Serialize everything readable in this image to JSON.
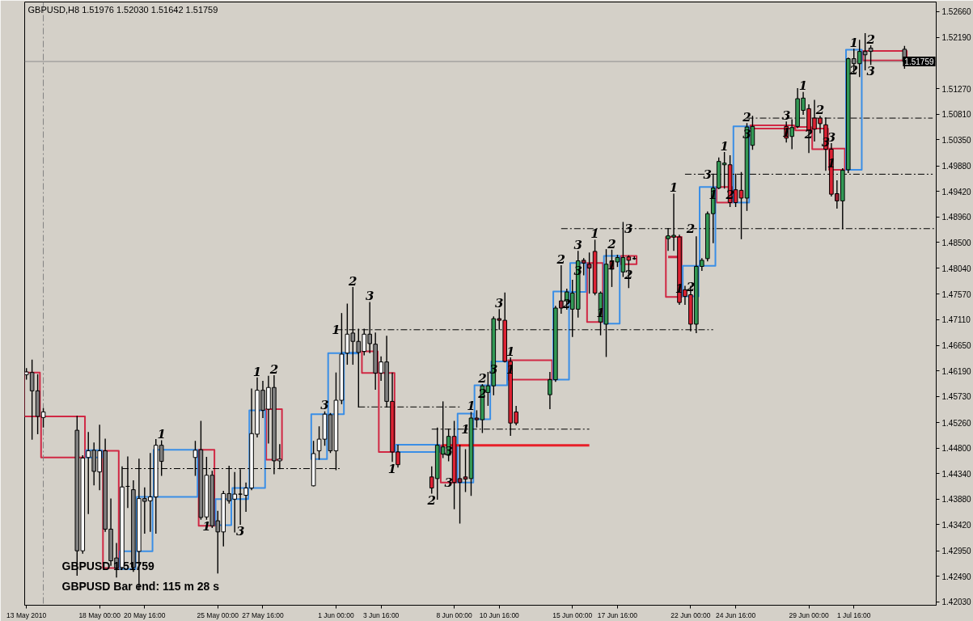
{
  "chart_data": {
    "type": "candlestick",
    "title": "GBPUSD,H8 1.51976 1.52030 1.51642 1.51759",
    "x": [
      "2010-05-13T16:00",
      "2010-05-14T00:00",
      "2010-05-14T08:00",
      "2010-05-14T16:00",
      "2010-05-16T16:00",
      "2010-05-17T00:00",
      "2010-05-17T08:00",
      "2010-05-17T16:00",
      "2010-05-18T00:00",
      "2010-05-18T08:00",
      "2010-05-18T16:00",
      "2010-05-19T00:00",
      "2010-05-19T08:00",
      "2010-05-19T16:00",
      "2010-05-20T00:00",
      "2010-05-20T08:00",
      "2010-05-20T16:00",
      "2010-05-21T00:00",
      "2010-05-21T08:00",
      "2010-05-21T16:00",
      "2010-05-23T16:00",
      "2010-05-24T00:00",
      "2010-05-24T08:00",
      "2010-05-24T16:00",
      "2010-05-25T00:00",
      "2010-05-25T08:00",
      "2010-05-25T16:00",
      "2010-05-26T00:00",
      "2010-05-26T08:00",
      "2010-05-26T16:00",
      "2010-05-27T00:00",
      "2010-05-27T08:00",
      "2010-05-27T16:00",
      "2010-05-28T00:00",
      "2010-05-28T08:00",
      "2010-05-28T16:00",
      "2010-05-30T16:00",
      "2010-05-31T00:00",
      "2010-05-31T08:00",
      "2010-05-31T16:00",
      "2010-06-01T00:00",
      "2010-06-01T08:00",
      "2010-06-01T16:00",
      "2010-06-02T00:00",
      "2010-06-02T08:00",
      "2010-06-02T16:00",
      "2010-06-03T00:00",
      "2010-06-03T08:00",
      "2010-06-03T16:00",
      "2010-06-04T00:00",
      "2010-06-04T08:00",
      "2010-06-04T16:00",
      "2010-06-06T16:00",
      "2010-06-07T00:00",
      "2010-06-07T08:00",
      "2010-06-07T16:00",
      "2010-06-08T00:00",
      "2010-06-08T08:00",
      "2010-06-08T16:00",
      "2010-06-09T00:00",
      "2010-06-09T08:00",
      "2010-06-09T16:00",
      "2010-06-10T00:00",
      "2010-06-10T08:00",
      "2010-06-10T16:00",
      "2010-06-11T00:00",
      "2010-06-11T08:00",
      "2010-06-11T16:00",
      "2010-06-13T16:00",
      "2010-06-14T00:00",
      "2010-06-14T08:00",
      "2010-06-14T16:00",
      "2010-06-15T00:00",
      "2010-06-15T08:00",
      "2010-06-15T16:00",
      "2010-06-16T00:00",
      "2010-06-16T08:00",
      "2010-06-16T16:00",
      "2010-06-17T00:00",
      "2010-06-17T08:00",
      "2010-06-17T16:00",
      "2010-06-18T00:00",
      "2010-06-18T08:00",
      "2010-06-18T16:00",
      "2010-06-20T16:00",
      "2010-06-21T00:00",
      "2010-06-21T08:00",
      "2010-06-21T16:00",
      "2010-06-22T00:00",
      "2010-06-22T08:00",
      "2010-06-22T16:00",
      "2010-06-23T00:00",
      "2010-06-23T08:00",
      "2010-06-23T16:00",
      "2010-06-24T00:00",
      "2010-06-24T08:00",
      "2010-06-24T16:00",
      "2010-06-25T00:00",
      "2010-06-25T08:00",
      "2010-06-25T16:00",
      "2010-06-27T16:00",
      "2010-06-28T00:00",
      "2010-06-28T08:00",
      "2010-06-28T16:00",
      "2010-06-29T00:00",
      "2010-06-29T08:00",
      "2010-06-29T16:00",
      "2010-06-30T00:00",
      "2010-06-30T08:00",
      "2010-06-30T16:00",
      "2010-07-01T00:00",
      "2010-07-01T08:00",
      "2010-07-01T16:00",
      "2010-07-02T00:00",
      "2010-07-02T08:00",
      "2010-07-02T16:00",
      "2010-07-04T16:00"
    ],
    "ohlc": [
      [
        1.4612,
        1.4623,
        1.4604,
        1.4617
      ],
      [
        1.4616,
        1.4638,
        1.4496,
        1.4583
      ],
      [
        1.4583,
        1.4612,
        1.4506,
        1.4537
      ],
      [
        1.4535,
        1.4551,
        1.4518,
        1.4545
      ],
      [
        1.4512,
        1.4537,
        1.4251,
        1.4295
      ],
      [
        1.4295,
        1.4466,
        1.4291,
        1.4462
      ],
      [
        1.4463,
        1.4508,
        1.4362,
        1.4475
      ],
      [
        1.4476,
        1.4489,
        1.4414,
        1.4438
      ],
      [
        1.4437,
        1.4521,
        1.4405,
        1.4475
      ],
      [
        1.4475,
        1.4496,
        1.433,
        1.4334
      ],
      [
        1.4334,
        1.4388,
        1.4269,
        1.4277
      ],
      [
        1.4282,
        1.4308,
        1.4248,
        1.4264
      ],
      [
        1.4265,
        1.4446,
        1.4262,
        1.441
      ],
      [
        1.4411,
        1.4464,
        1.4373,
        1.4411
      ],
      [
        1.4405,
        1.4421,
        1.4258,
        1.4265
      ],
      [
        1.4294,
        1.446,
        1.4226,
        1.4389
      ],
      [
        1.4389,
        1.4408,
        1.4327,
        1.4384
      ],
      [
        1.4385,
        1.447,
        1.433,
        1.4392
      ],
      [
        1.4392,
        1.4495,
        1.4327,
        1.4485
      ],
      [
        1.4485,
        1.4493,
        1.4431,
        1.4456
      ],
      [
        1.4463,
        1.4492,
        1.4431,
        1.4476
      ],
      [
        1.4477,
        1.4528,
        1.4352,
        1.4355
      ],
      [
        1.4356,
        1.4463,
        1.4352,
        1.4431
      ],
      [
        1.4431,
        1.4438,
        1.4337,
        1.434
      ],
      [
        1.4349,
        1.4366,
        1.4255,
        1.4329
      ],
      [
        1.4329,
        1.4402,
        1.4304,
        1.4398
      ],
      [
        1.4398,
        1.4447,
        1.4381,
        1.4385
      ],
      [
        1.4388,
        1.4436,
        1.4329,
        1.4397
      ],
      [
        1.4397,
        1.4441,
        1.4343,
        1.4397
      ],
      [
        1.4395,
        1.4417,
        1.4366,
        1.4408
      ],
      [
        1.4408,
        1.4586,
        1.4405,
        1.4506
      ],
      [
        1.4505,
        1.4606,
        1.45,
        1.4584
      ],
      [
        1.4584,
        1.46,
        1.4535,
        1.4548
      ],
      [
        1.455,
        1.4609,
        1.4489,
        1.4589
      ],
      [
        1.4589,
        1.461,
        1.4434,
        1.4457
      ],
      [
        1.4457,
        1.4486,
        1.4443,
        1.446
      ],
      [
        1.4412,
        1.4492,
        1.4412,
        1.447
      ],
      [
        1.4475,
        1.4518,
        1.446,
        1.4496
      ],
      [
        1.4496,
        1.4545,
        1.4485,
        1.4541
      ],
      [
        1.454,
        1.4542,
        1.4472,
        1.4475
      ],
      [
        1.4475,
        1.4615,
        1.4441,
        1.4566
      ],
      [
        1.4566,
        1.4722,
        1.456,
        1.4649
      ],
      [
        1.4651,
        1.4739,
        1.4631,
        1.4685
      ],
      [
        1.4687,
        1.4769,
        1.4631,
        1.4672
      ],
      [
        1.4672,
        1.4694,
        1.4554,
        1.4652
      ],
      [
        1.4654,
        1.4694,
        1.4648,
        1.4685
      ],
      [
        1.4685,
        1.4742,
        1.4652,
        1.4668
      ],
      [
        1.4667,
        1.4687,
        1.4586,
        1.4615
      ],
      [
        1.4615,
        1.4644,
        1.4602,
        1.4635
      ],
      [
        1.4635,
        1.4681,
        1.4554,
        1.4564
      ],
      [
        1.4564,
        1.4615,
        1.4456,
        1.4473
      ],
      [
        1.4473,
        1.4485,
        1.4446,
        1.445
      ],
      [
        1.4428,
        1.4446,
        1.4399,
        1.4408
      ],
      [
        1.4425,
        1.4516,
        1.4388,
        1.4485
      ],
      [
        1.4469,
        1.4563,
        1.4463,
        1.4482
      ],
      [
        1.4467,
        1.4514,
        1.4457,
        1.4501
      ],
      [
        1.4501,
        1.4528,
        1.4371,
        1.4418
      ],
      [
        1.4425,
        1.4485,
        1.4345,
        1.4418
      ],
      [
        1.4428,
        1.4477,
        1.4402,
        1.4424
      ],
      [
        1.4425,
        1.4544,
        1.4395,
        1.4534
      ],
      [
        1.4534,
        1.4547,
        1.4518,
        1.4531
      ],
      [
        1.4531,
        1.4594,
        1.4508,
        1.4592
      ],
      [
        1.458,
        1.4616,
        1.4557,
        1.4592
      ],
      [
        1.4592,
        1.4716,
        1.4576,
        1.4713
      ],
      [
        1.4713,
        1.4729,
        1.4694,
        1.471
      ],
      [
        1.471,
        1.4759,
        1.4635,
        1.4636
      ],
      [
        1.4636,
        1.4642,
        1.4503,
        1.4525
      ],
      [
        1.4545,
        1.4555,
        1.4522,
        1.4525
      ],
      [
        1.4576,
        1.4616,
        1.4551,
        1.4603
      ],
      [
        1.4603,
        1.4735,
        1.46,
        1.4732
      ],
      [
        1.4745,
        1.4808,
        1.4723,
        1.4732
      ],
      [
        1.4745,
        1.4766,
        1.473,
        1.4761
      ],
      [
        1.473,
        1.4782,
        1.4681,
        1.4759
      ],
      [
        1.473,
        1.4834,
        1.4716,
        1.4817
      ],
      [
        1.4818,
        1.4821,
        1.4792,
        1.4813
      ],
      [
        1.4811,
        1.4831,
        1.4759,
        1.4804
      ],
      [
        1.4834,
        1.4854,
        1.4756,
        1.4759
      ],
      [
        1.4707,
        1.4761,
        1.4684,
        1.4759
      ],
      [
        1.4703,
        1.4837,
        1.4645,
        1.4811
      ],
      [
        1.4817,
        1.4836,
        1.4771,
        1.4802
      ],
      [
        1.4815,
        1.4827,
        1.4807,
        1.4823
      ],
      [
        1.4797,
        1.4886,
        1.4789,
        1.4823
      ],
      [
        1.4824,
        1.4826,
        1.4769,
        1.4818
      ],
      [
        1.4821,
        1.4824,
        1.482,
        1.4821
      ],
      [
        1.4857,
        1.4875,
        1.4836,
        1.4862
      ],
      [
        1.486,
        1.4937,
        1.4836,
        1.4863
      ],
      [
        1.486,
        1.4863,
        1.4739,
        1.4742
      ],
      [
        1.4765,
        1.4771,
        1.4739,
        1.4753
      ],
      [
        1.4756,
        1.4771,
        1.4691,
        1.4703
      ],
      [
        1.4703,
        1.486,
        1.4688,
        1.4807
      ],
      [
        1.4807,
        1.4821,
        1.48,
        1.4818
      ],
      [
        1.4821,
        1.4905,
        1.4817,
        1.4902
      ],
      [
        1.4902,
        1.4973,
        1.485,
        1.4948
      ],
      [
        1.4948,
        1.5002,
        1.4947,
        1.4996
      ],
      [
        1.499,
        1.5012,
        1.4948,
        1.4993
      ],
      [
        1.499,
        1.5006,
        1.4915,
        1.4922
      ],
      [
        1.4945,
        1.4973,
        1.4915,
        1.4922
      ],
      [
        1.4944,
        1.4976,
        1.4857,
        1.493
      ],
      [
        1.493,
        1.5064,
        1.4908,
        1.5058
      ],
      [
        1.5025,
        1.5077,
        1.5018,
        1.5059
      ],
      [
        1.5059,
        1.5067,
        1.5031,
        1.5038
      ],
      [
        1.5041,
        1.5071,
        1.5019,
        1.5057
      ],
      [
        1.5059,
        1.5127,
        1.5057,
        1.5109
      ],
      [
        1.5088,
        1.512,
        1.5081,
        1.511
      ],
      [
        1.5091,
        1.5098,
        1.5012,
        1.5052
      ],
      [
        1.5074,
        1.5106,
        1.5033,
        1.5054
      ],
      [
        1.5074,
        1.5077,
        1.5048,
        1.5064
      ],
      [
        1.5062,
        1.5074,
        1.498,
        1.5018
      ],
      [
        1.5018,
        1.5028,
        1.4934,
        1.4937
      ],
      [
        1.4938,
        1.4961,
        1.4912,
        1.4925
      ],
      [
        1.4925,
        1.4983,
        1.4875,
        1.498
      ],
      [
        1.4981,
        1.5182,
        1.4976,
        1.5181
      ],
      [
        1.5181,
        1.5198,
        1.5156,
        1.5172
      ],
      [
        1.5172,
        1.5214,
        1.5149,
        1.5194
      ],
      [
        1.5194,
        1.5226,
        1.5161,
        1.5188
      ],
      [
        1.52,
        1.5204,
        1.5171,
        1.5194
      ],
      [
        1.5198,
        1.5203,
        1.5164,
        1.5176
      ]
    ],
    "colors": [
      "#ffffff",
      "#808080",
      "#808080",
      "#ffffff",
      "#808080",
      "#ffffff",
      "#ffffff",
      "#808080",
      "#ffffff",
      "#808080",
      "#808080",
      "#808080",
      "#ffffff",
      "#000000",
      "#808080",
      "#ffffff",
      "#808080",
      "#ffffff",
      "#ffffff",
      "#808080",
      "#ffffff",
      "#808080",
      "#ffffff",
      "#808080",
      "#808080",
      "#ffffff",
      "#808080",
      "#ffffff",
      "#000000",
      "#ffffff",
      "#ffffff",
      "#ffffff",
      "#808080",
      "#ffffff",
      "#808080",
      "#ffffff",
      "#ffffff",
      "#ffffff",
      "#ffffff",
      "#808080",
      "#ffffff",
      "#ffffff",
      "#ffffff",
      "#808080",
      "#808080",
      "#ffffff",
      "#808080",
      "#808080",
      "#ffffff",
      "#808080",
      "#dd2233",
      "#dd2233",
      "#dd2233",
      "#339955",
      "#339955",
      "#339955",
      "#dd2233",
      "#992233",
      "#992233",
      "#339955",
      "#992233",
      "#339955",
      "#339955",
      "#339955",
      "#992233",
      "#dd2233",
      "#dd2233",
      "#dd2233",
      "#339955",
      "#339955",
      "#992233",
      "#339955",
      "#339955",
      "#339955",
      "#992233",
      "#992233",
      "#dd2233",
      "#339955",
      "#339955",
      "#dd2233",
      "#339955",
      "#339955",
      "#dd2233",
      "#000000",
      "#339955",
      "#339955",
      "#dd2233",
      "#dd2233",
      "#dd2233",
      "#339955",
      "#339955",
      "#339955",
      "#339955",
      "#339955",
      "#339955",
      "#dd2233",
      "#dd2233",
      "#dd2233",
      "#339955",
      "#339955",
      "#dd2233",
      "#339955",
      "#339955",
      "#339955",
      "#dd2233",
      "#dd2233",
      "#dd2233",
      "#dd2233",
      "#dd2233",
      "#992233",
      "#339955",
      "#339955",
      "#808080",
      "#339955",
      "#808080",
      "#808080",
      "#808080"
    ],
    "series": [
      {
        "type": "bar",
        "color": "#d02844",
        "x": [
          "2010-05-14T00:00",
          "2010-05-15T20:00",
          "2010-05-18T16:00",
          "2010-05-24T08:00",
          "2010-05-28T08:00",
          "2010-06-03T00:00",
          "2010-06-04T00:00",
          "2010-06-07T16:00",
          "2010-06-12T12:00",
          "2010-06-16T08:00",
          "2010-06-18T08:00",
          "2010-06-21T00:00",
          "2010-06-24T00:00",
          "2010-06-26T20:00",
          "2010-06-28T16:00",
          "2010-06-29T16:00",
          "2010-06-30T16:00",
          "2010-07-03T12:00"
        ],
        "base": [
          1.4537,
          1.4463,
          1.4264,
          1.434,
          1.4459,
          1.4615,
          1.4473,
          1.4418,
          1.4603,
          1.4707,
          1.4811,
          1.4752,
          1.4922,
          1.5055,
          1.5052,
          1.5018,
          1.4981,
          1.5178
        ],
        "values": [
          0.0079,
          0.0074,
          0.0211,
          0.0137,
          0.0091,
          0.0039,
          0.0142,
          0.0067,
          0.0035,
          0.0106,
          0.0015,
          0.0108,
          0.0028,
          0.0006,
          0.0006,
          0.0037,
          0.0038,
          0.0017
        ]
      },
      {
        "type": "bar",
        "color": "#3a8ee6",
        "x": [
          "2010-05-17T16:00",
          "2010-05-19T16:00",
          "2010-05-20T16:00",
          "2010-05-22T12:00",
          "2010-05-25T08:00",
          "2010-05-26T08:00",
          "2010-05-27T08:00",
          "2010-05-31T00:00",
          "2010-06-01T00:00",
          "2010-06-05T20:00",
          "2010-06-08T16:00",
          "2010-06-09T16:00",
          "2010-06-10T16:00",
          "2010-06-14T08:00",
          "2010-06-15T08:00",
          "2010-06-17T08:00",
          "2010-06-22T00:00",
          "2010-06-23T00:00",
          "2010-06-25T00:00",
          "2010-07-01T16:00"
        ],
        "base": [
          1.4463,
          1.4262,
          1.4294,
          1.4392,
          1.4341,
          1.4388,
          1.4408,
          1.446,
          1.4541,
          1.4473,
          1.4418,
          1.4532,
          1.4593,
          1.4603,
          1.4761,
          1.4704,
          1.4753,
          1.4808,
          1.4922,
          1.4981
        ],
        "values": [
          0.0013,
          0.0032,
          0.0098,
          0.0085,
          0.0047,
          0.002,
          0.014,
          0.0081,
          0.011,
          0.0013,
          0.0124,
          0.0061,
          0.0043,
          0.0159,
          0.0052,
          0.0122,
          0.0055,
          0.0142,
          0.0137,
          0.0216
        ]
      },
      {
        "type": "line",
        "color": "#d02844",
        "x": [
          "2010-06-20T16:00",
          "2010-06-21T08:00"
        ],
        "values": [
          1.4824,
          1.4824
        ]
      },
      {
        "type": "line",
        "color": "#3a8ee6",
        "x": [
          "2010-06-01T08:00",
          "2010-06-02T08:00"
        ],
        "values": [
          1.4651,
          1.4651
        ]
      },
      {
        "type": "line",
        "color": "#000000",
        "line_style": "dashed",
        "x": [
          "2010-05-19T08:00",
          "2010-06-01T08:00"
        ],
        "values": [
          1.4443,
          1.4443
        ]
      },
      {
        "type": "line",
        "color": "#000000",
        "line_style": "dashed",
        "x": [
          "2010-06-01T00:00",
          "2010-06-23T08:00"
        ],
        "values": [
          1.4693,
          1.4693
        ]
      },
      {
        "type": "line",
        "color": "#000000",
        "line_style": "dashed",
        "x": [
          "2010-06-02T08:00",
          "2010-06-08T08:00"
        ],
        "values": [
          1.4554,
          1.4554
        ]
      },
      {
        "type": "line",
        "color": "#000000",
        "line_style": "dashed",
        "x": [
          "2010-06-06T16:00",
          "2010-06-16T00:00"
        ],
        "values": [
          1.4514,
          1.4514
        ]
      },
      {
        "type": "line",
        "color": "#000000",
        "line_style": "dashed",
        "x": [
          "2010-06-14T08:00",
          "2010-07-06T12:00"
        ],
        "values": [
          1.4875,
          1.4875
        ]
      },
      {
        "type": "line",
        "color": "#000000",
        "line_style": "dashed",
        "x": [
          "2010-06-21T16:00",
          "2010-07-06T08:00"
        ],
        "values": [
          1.4973,
          1.4973
        ]
      },
      {
        "type": "line",
        "color": "#000000",
        "line_style": "dashed",
        "x": [
          "2010-06-25T08:00",
          "2010-07-06T08:00"
        ],
        "values": [
          1.5074,
          1.5074
        ]
      },
      {
        "type": "line",
        "color": "#e8202a",
        "x": [
          "2010-06-07T08:00",
          "2010-06-16T00:00"
        ],
        "values": [
          1.4485,
          1.4485
        ]
      }
    ],
    "xlim": [
      "2010-05-13T13:30",
      "2010-07-06T13:00"
    ],
    "xticks": [
      {
        "value": "2010-05-13T16:00",
        "label": "13 May 2010"
      },
      {
        "value": "2010-05-18T00:00",
        "label": "18 May 00:00"
      },
      {
        "value": "2010-05-20T16:00",
        "label": "20 May 16:00"
      },
      {
        "value": "2010-05-25T00:00",
        "label": "25 May 00:00"
      },
      {
        "value": "2010-05-27T16:00",
        "label": "27 May 16:00"
      },
      {
        "value": "2010-06-01T00:00",
        "label": "1 Jun 00:00"
      },
      {
        "value": "2010-06-03T16:00",
        "label": "3 Jun 16:00"
      },
      {
        "value": "2010-06-08T00:00",
        "label": "8 Jun 00:00"
      },
      {
        "value": "2010-06-10T16:00",
        "label": "10 Jun 16:00"
      },
      {
        "value": "2010-06-15T00:00",
        "label": "15 Jun 00:00"
      },
      {
        "value": "2010-06-17T16:00",
        "label": "17 Jun 16:00"
      },
      {
        "value": "2010-06-22T00:00",
        "label": "22 Jun 00:00"
      },
      {
        "value": "2010-06-24T16:00",
        "label": "24 Jun 16:00"
      },
      {
        "value": "2010-06-29T00:00",
        "label": "29 Jun 00:00"
      },
      {
        "value": "2010-07-01T16:00",
        "label": "1 Jul 16:00"
      }
    ],
    "ylim": [
      1.4197,
      1.5283
    ],
    "yticks": [
      {
        "value": 1.5266,
        "label": "1.52660"
      },
      {
        "value": 1.5219,
        "label": "1.52190"
      },
      {
        "value": 1.5127,
        "label": "1.51270"
      },
      {
        "value": 1.5081,
        "label": "1.50810"
      },
      {
        "value": 1.5035,
        "label": "1.50350"
      },
      {
        "value": 1.4988,
        "label": "1.49880"
      },
      {
        "value": 1.4942,
        "label": "1.49420"
      },
      {
        "value": 1.4896,
        "label": "1.48960"
      },
      {
        "value": 1.485,
        "label": "1.48500"
      },
      {
        "value": 1.4804,
        "label": "1.48040"
      },
      {
        "value": 1.4757,
        "label": "1.47570"
      },
      {
        "value": 1.4711,
        "label": "1.47110"
      },
      {
        "value": 1.4665,
        "label": "1.46650"
      },
      {
        "value": 1.4619,
        "label": "1.46190"
      },
      {
        "value": 1.4573,
        "label": "1.45730"
      },
      {
        "value": 1.4526,
        "label": "1.45260"
      },
      {
        "value": 1.448,
        "label": "1.44800"
      },
      {
        "value": 1.4434,
        "label": "1.44340"
      },
      {
        "value": 1.4388,
        "label": "1.43880"
      },
      {
        "value": 1.4342,
        "label": "1.43420"
      },
      {
        "value": 1.4295,
        "label": "1.42950"
      },
      {
        "value": 1.4249,
        "label": "1.42490"
      },
      {
        "value": 1.4203,
        "label": "1.42030"
      }
    ],
    "ref_lines": [
      {
        "axis": "y",
        "value": 1.51759,
        "label": "1.51759",
        "color": "#8c8c8c"
      },
      {
        "axis": "x",
        "value": "2010-05-14T16:00",
        "color": "#808080",
        "line_style": "dashed"
      }
    ],
    "annotations": [
      {
        "text": "1",
        "x": "2010-05-21T16:00",
        "y": 1.4493
      },
      {
        "text": "1",
        "x": "2010-05-27T08:00",
        "y": 1.4606
      },
      {
        "text": "2",
        "x": "2010-05-28T08:00",
        "y": 1.461
      },
      {
        "text": "3",
        "x": "2010-05-31T08:00",
        "y": 1.4545
      },
      {
        "text": "1",
        "x": "2010-06-01T00:00",
        "y": 1.4693
      },
      {
        "text": "2",
        "x": "2010-06-02T00:00",
        "y": 1.4769
      },
      {
        "text": "3",
        "x": "2010-06-03T00:00",
        "y": 1.4742
      },
      {
        "text": "1",
        "x": "2010-05-24T08:00",
        "y": 1.4352
      },
      {
        "text": "3",
        "x": "2010-05-26T08:00",
        "y": 1.4343
      },
      {
        "text": "1",
        "x": "2010-06-04T08:00",
        "y": 1.4456
      },
      {
        "text": "2",
        "x": "2010-06-06T16:00",
        "y": 1.4399
      },
      {
        "text": "3",
        "x": "2010-06-07T16:00",
        "y": 1.4418
      },
      {
        "text": "1",
        "x": "2010-06-09T00:00",
        "y": 1.4544
      },
      {
        "text": "2",
        "x": "2010-06-09T16:00",
        "y": 1.4594
      },
      {
        "text": "3",
        "x": "2010-06-10T16:00",
        "y": 1.4729
      },
      {
        "text": "1",
        "x": "2010-06-11T08:00",
        "y": 1.4642
      },
      {
        "text": "2",
        "x": "2010-06-14T08:00",
        "y": 1.4808
      },
      {
        "text": "3",
        "x": "2010-06-15T08:00",
        "y": 1.4834
      },
      {
        "text": "1",
        "x": "2010-06-16T08:00",
        "y": 1.4854
      },
      {
        "text": "2",
        "x": "2010-06-17T08:00",
        "y": 1.4836
      },
      {
        "text": "3",
        "x": "2010-06-18T08:00",
        "y": 1.4875
      },
      {
        "text": "1",
        "x": "2010-06-21T00:00",
        "y": 1.4937
      },
      {
        "text": "2",
        "x": "2010-06-22T00:00",
        "y": 1.4875
      },
      {
        "text": "3",
        "x": "2010-06-23T00:00",
        "y": 1.4973
      },
      {
        "text": "1",
        "x": "2010-06-24T00:00",
        "y": 1.5012
      },
      {
        "text": "2",
        "x": "2010-06-25T08:00",
        "y": 1.5064
      },
      {
        "text": "3",
        "x": "2010-06-27T16:00",
        "y": 1.5067
      },
      {
        "text": "1",
        "x": "2010-06-28T16:00",
        "y": 1.512
      },
      {
        "text": "2",
        "x": "2010-06-29T16:00",
        "y": 1.5077
      },
      {
        "text": "3",
        "x": "2010-06-30T08:00",
        "y": 1.5028
      },
      {
        "text": "1",
        "x": "2010-07-01T16:00",
        "y": 1.5198
      },
      {
        "text": "2",
        "x": "2010-07-02T16:00",
        "y": 1.5204
      },
      {
        "text": "1",
        "x": "2010-06-08T16:00",
        "y": 1.4514
      },
      {
        "text": "2",
        "x": "2010-06-09T16:00",
        "y": 1.4578
      },
      {
        "text": "3",
        "x": "2010-06-07T16:00",
        "y": 1.4475
      },
      {
        "text": "3",
        "x": "2010-06-10T08:00",
        "y": 1.4622
      },
      {
        "text": "1",
        "x": "2010-06-11T08:00",
        "y": 1.4622
      },
      {
        "text": "2",
        "x": "2010-06-14T16:00",
        "y": 1.474
      },
      {
        "text": "3",
        "x": "2010-06-15T08:00",
        "y": 1.48
      },
      {
        "text": "1",
        "x": "2010-06-16T16:00",
        "y": 1.4724
      },
      {
        "text": "1",
        "x": "2010-06-17T08:00",
        "y": 1.481
      },
      {
        "text": "2",
        "x": "2010-06-18T08:00",
        "y": 1.4793
      },
      {
        "text": "1",
        "x": "2010-06-21T08:00",
        "y": 1.4768
      },
      {
        "text": "2",
        "x": "2010-06-22T00:00",
        "y": 1.477
      },
      {
        "text": "1",
        "x": "2010-06-23T08:00",
        "y": 1.4937
      },
      {
        "text": "2",
        "x": "2010-06-24T08:00",
        "y": 1.4937
      },
      {
        "text": "3",
        "x": "2010-06-25T08:00",
        "y": 1.5045
      },
      {
        "text": "1",
        "x": "2010-06-27T16:00",
        "y": 1.5048
      },
      {
        "text": "2",
        "x": "2010-06-29T00:00",
        "y": 1.5045
      },
      {
        "text": "3",
        "x": "2010-06-30T00:00",
        "y": 1.5031
      },
      {
        "text": "1",
        "x": "2010-06-30T08:00",
        "y": 1.4994
      },
      {
        "text": "2",
        "x": "2010-07-01T16:00",
        "y": 1.516
      },
      {
        "text": "3",
        "x": "2010-07-02T16:00",
        "y": 1.5171
      },
      "GBPUSD 1.51759",
      "GBPUSD Bar end: 115 m 28 s"
    ]
  }
}
